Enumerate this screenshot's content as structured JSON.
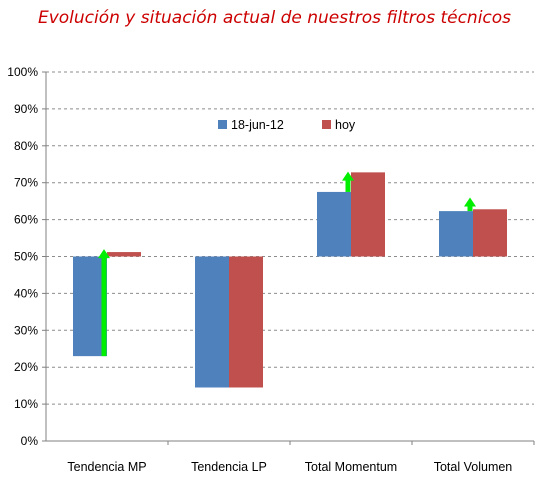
{
  "title": "Evolución y situación actual de nuestros filtros técnicos",
  "colors": {
    "series1": "#4f81bd",
    "series2": "#c0504d",
    "arrow": "#00ee00",
    "grid": "#8c8c8c"
  },
  "chart_data": {
    "type": "bar",
    "title": "Evolución y situación actual de nuestros filtros técnicos",
    "xlabel": "",
    "ylabel": "",
    "ylim": [
      0,
      100
    ],
    "baseline": 50,
    "yticks": [
      "0%",
      "10%",
      "20%",
      "30%",
      "40%",
      "50%",
      "60%",
      "70%",
      "80%",
      "90%",
      "100%"
    ],
    "categories": [
      "Tendencia MP",
      "Tendencia LP",
      "Total Momentum",
      "Total Volumen"
    ],
    "series": [
      {
        "name": "18-jun-12",
        "values": [
          23,
          14.5,
          67.5,
          62.3
        ]
      },
      {
        "name": "hoy",
        "values": [
          51.2,
          14.5,
          72.8,
          62.8
        ]
      }
    ],
    "arrows": [
      {
        "category": "Tendencia MP",
        "from": 23,
        "to": 52
      },
      {
        "category": "Total Momentum",
        "from": 67.5,
        "to": 73
      },
      {
        "category": "Total Volumen",
        "from": 62.3,
        "to": 66
      }
    ],
    "grid": true,
    "legend_position": "top-center"
  }
}
